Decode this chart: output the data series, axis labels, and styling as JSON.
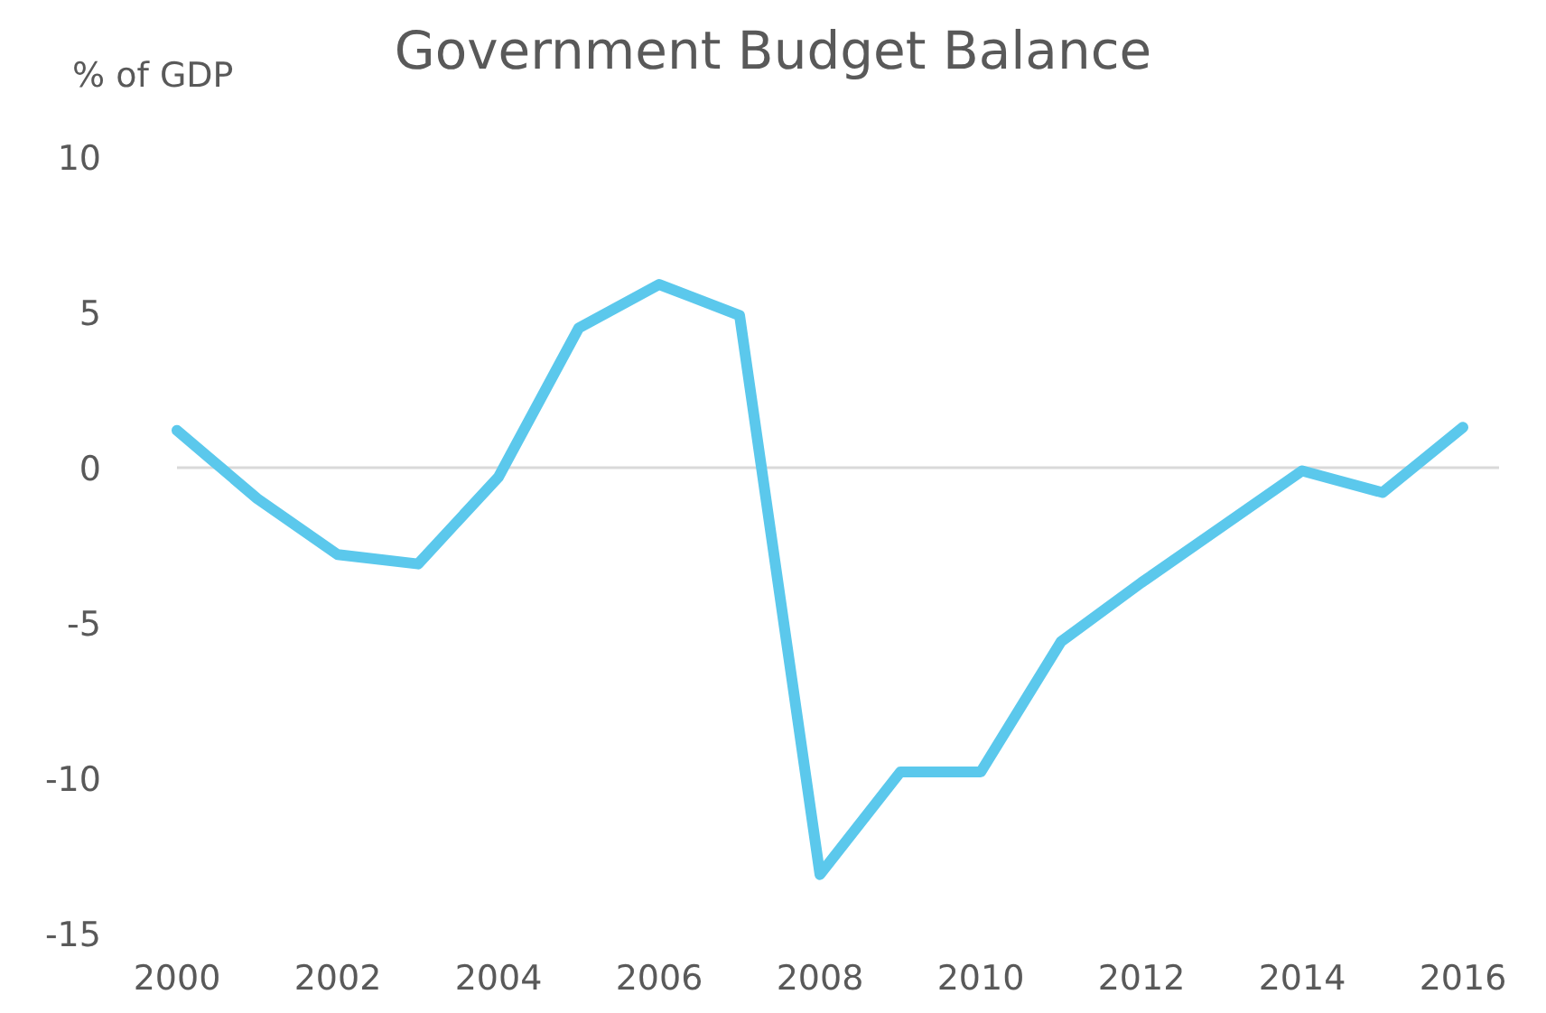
{
  "chart_data": {
    "type": "line",
    "title": "Government Budget Balance",
    "ylabel": "% of GDP",
    "x": [
      2000,
      2001,
      2002,
      2003,
      2004,
      2005,
      2006,
      2007,
      2008,
      2009,
      2010,
      2011,
      2012,
      2013,
      2014,
      2015,
      2016
    ],
    "series": [
      {
        "color": "#5bc8ec",
        "values": [
          1.2,
          -1.0,
          -2.8,
          -3.1,
          -0.3,
          4.5,
          5.9,
          4.9,
          -13.1,
          -9.8,
          -9.8,
          -5.6,
          -3.7,
          -1.9,
          -0.1,
          -0.8,
          1.3
        ]
      }
    ],
    "xlim": [
      2000,
      2016
    ],
    "xticks": [
      2000,
      2002,
      2004,
      2006,
      2008,
      2010,
      2012,
      2014,
      2016
    ],
    "ylim": [
      -15,
      10
    ],
    "yticks": [
      -15,
      -10,
      -5,
      0,
      5,
      10
    ],
    "ref_lines": [
      {
        "axis": "y",
        "value": 0,
        "color": "#d9d9d9"
      }
    ],
    "marker": "none",
    "line_style": "solid"
  }
}
